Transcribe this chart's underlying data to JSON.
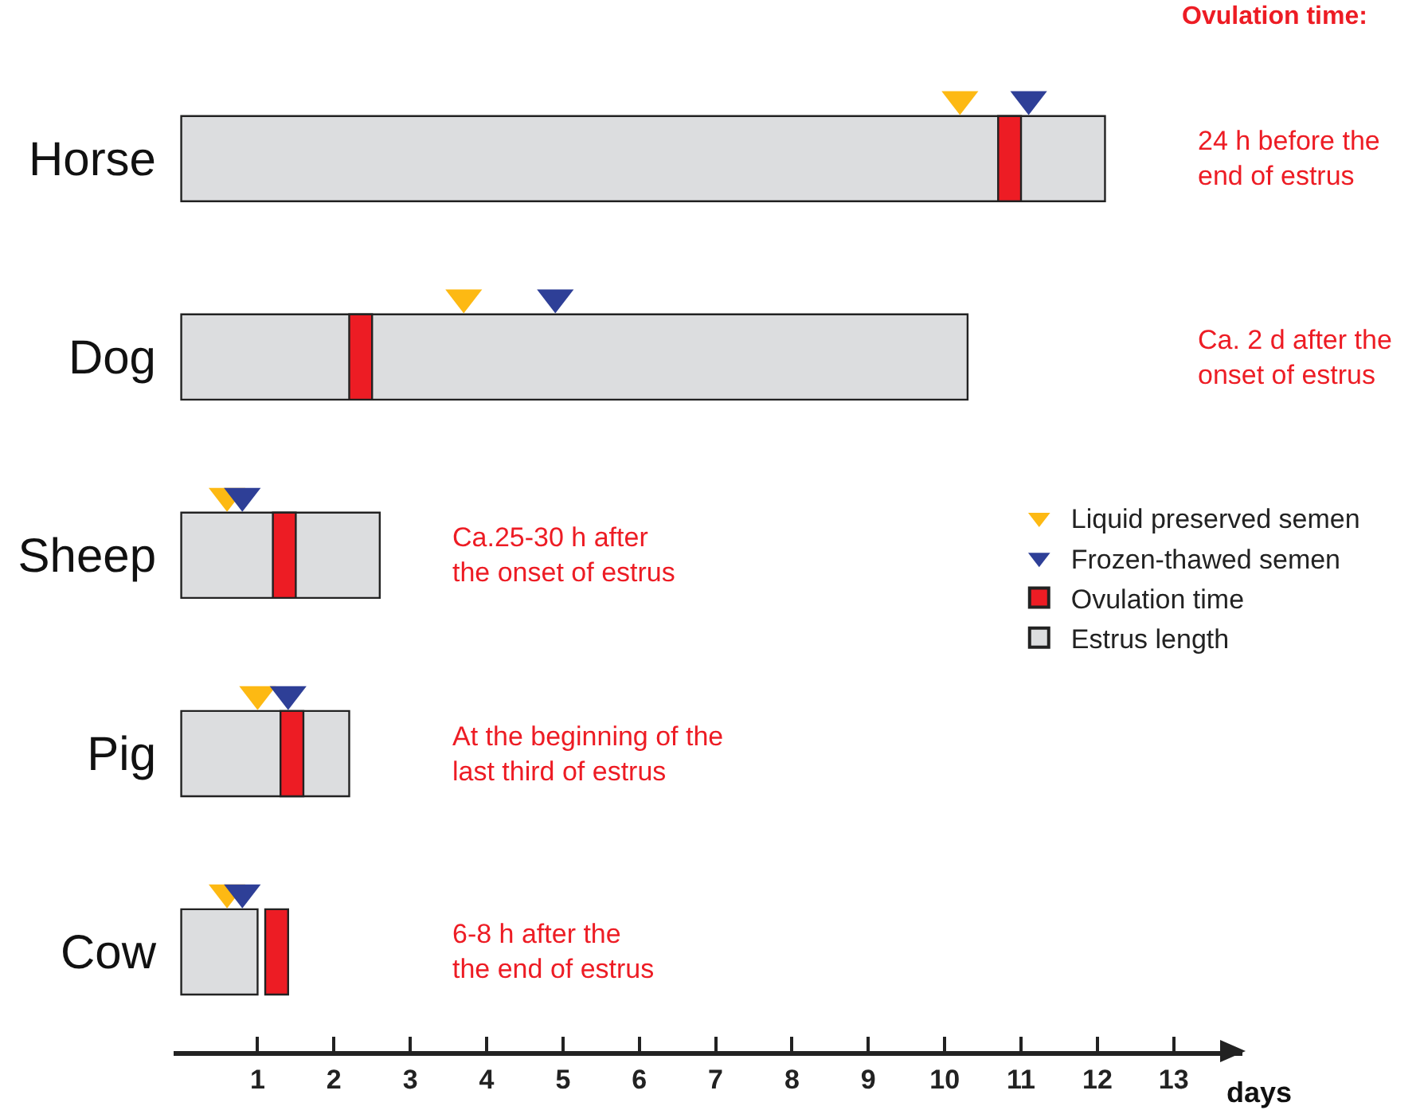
{
  "chart_data": {
    "type": "bar",
    "orientation": "horizontal",
    "categories": [
      "Horse",
      "Dog",
      "Sheep",
      "Pig",
      "Cow"
    ],
    "series": [
      {
        "name": "Estrus length",
        "color": "#dcdddf",
        "base": [
          0,
          0,
          0,
          0,
          0
        ],
        "values": [
          12.1,
          10.3,
          2.6,
          2.2,
          1.0
        ]
      },
      {
        "name": "Ovulation time",
        "color": "#ed1c24",
        "base": [
          10.7,
          2.2,
          1.2,
          1.3,
          1.1
        ],
        "values": [
          0.3,
          0.3,
          0.3,
          0.3,
          0.3
        ]
      },
      {
        "name": "Liquid preserved semen",
        "type": "scatter",
        "color": "#fdb913",
        "values": [
          10.2,
          3.7,
          0.6,
          1.0,
          0.6
        ]
      },
      {
        "name": "Frozen-thawed semen",
        "type": "scatter",
        "color": "#2e3f97",
        "values": [
          11.1,
          4.9,
          0.8,
          1.4,
          0.8
        ]
      }
    ],
    "marker": "triangle",
    "xlim": [
      -0.1,
      13.9
    ],
    "xticks": [
      1,
      2,
      3,
      4,
      5,
      6,
      7,
      8,
      9,
      10,
      11,
      12,
      13
    ],
    "xlabel": "days",
    "legend": "right",
    "annotations": [
      "Ovulation time:",
      "24 h before the\nend of estrus",
      "Ca. 2 d after the\nonset of estrus",
      "Ca.25-30 h after\nthe onset of estrus",
      "At the beginning of the\nlast third of estrus",
      "6-8 h after the\nthe end of estrus"
    ]
  }
}
